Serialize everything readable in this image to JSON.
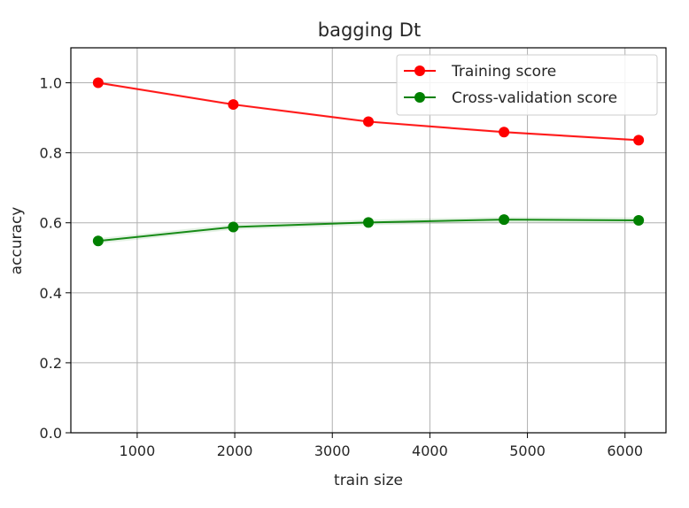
{
  "chart_data": {
    "type": "line",
    "title": "bagging Dt",
    "xlabel": "train size",
    "ylabel": "accuracy",
    "xlim": [
      320,
      6420
    ],
    "ylim": [
      0.0,
      1.1
    ],
    "xticks": [
      1000,
      2000,
      3000,
      4000,
      5000,
      6000
    ],
    "yticks": [
      0.0,
      0.2,
      0.4,
      0.6,
      0.8,
      1.0
    ],
    "xtick_labels": [
      "1000",
      "2000",
      "3000",
      "4000",
      "5000",
      "6000"
    ],
    "ytick_labels": [
      "0.0",
      "0.2",
      "0.4",
      "0.6",
      "0.8",
      "1.0"
    ],
    "grid": true,
    "legend_position": "top-right",
    "x": [
      600,
      1985,
      3370,
      4760,
      6140
    ],
    "series": [
      {
        "name": "Training score",
        "color": "#ff0000",
        "values": [
          1.0,
          0.938,
          0.889,
          0.859,
          0.836
        ],
        "band": 0.004
      },
      {
        "name": "Cross-validation score",
        "color": "#008000",
        "values": [
          0.548,
          0.588,
          0.601,
          0.609,
          0.607
        ],
        "band": 0.008
      }
    ]
  }
}
